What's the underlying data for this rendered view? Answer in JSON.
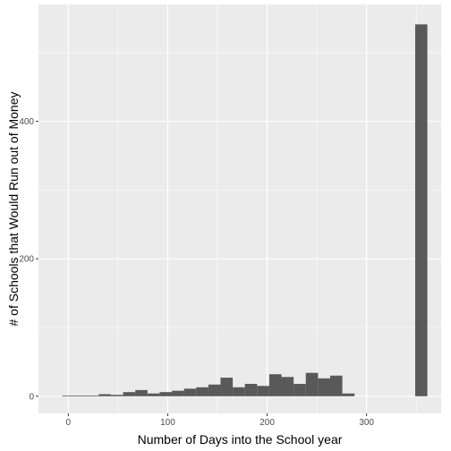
{
  "chart_data": {
    "type": "bar",
    "xlabel": "Number of Days into the School year",
    "ylabel": "# of Schools that Would Run out of Money",
    "xlim": [
      -30,
      375
    ],
    "ylim": [
      -25,
      570
    ],
    "x_ticks": [
      0,
      100,
      200,
      300
    ],
    "y_ticks": [
      0,
      200,
      400
    ],
    "bin_width": 12.25,
    "grid": true,
    "panel_color": "#ebebeb",
    "bar_color": "#595959",
    "bars": [
      {
        "x": 0,
        "y": 1
      },
      {
        "x": 12.25,
        "y": 1
      },
      {
        "x": 24.5,
        "y": 1
      },
      {
        "x": 36.75,
        "y": 3
      },
      {
        "x": 49,
        "y": 2
      },
      {
        "x": 61.25,
        "y": 6
      },
      {
        "x": 73.5,
        "y": 9
      },
      {
        "x": 85.75,
        "y": 4
      },
      {
        "x": 98,
        "y": 6
      },
      {
        "x": 110.25,
        "y": 8
      },
      {
        "x": 122.5,
        "y": 11
      },
      {
        "x": 134.75,
        "y": 13
      },
      {
        "x": 147,
        "y": 17
      },
      {
        "x": 159.25,
        "y": 27
      },
      {
        "x": 171.5,
        "y": 13
      },
      {
        "x": 183.75,
        "y": 18
      },
      {
        "x": 196,
        "y": 15
      },
      {
        "x": 208.25,
        "y": 32
      },
      {
        "x": 220.5,
        "y": 28
      },
      {
        "x": 232.75,
        "y": 18
      },
      {
        "x": 245,
        "y": 34
      },
      {
        "x": 257.25,
        "y": 26
      },
      {
        "x": 269.5,
        "y": 30
      },
      {
        "x": 281.75,
        "y": 4
      },
      {
        "x": 355,
        "y": 541
      }
    ]
  }
}
